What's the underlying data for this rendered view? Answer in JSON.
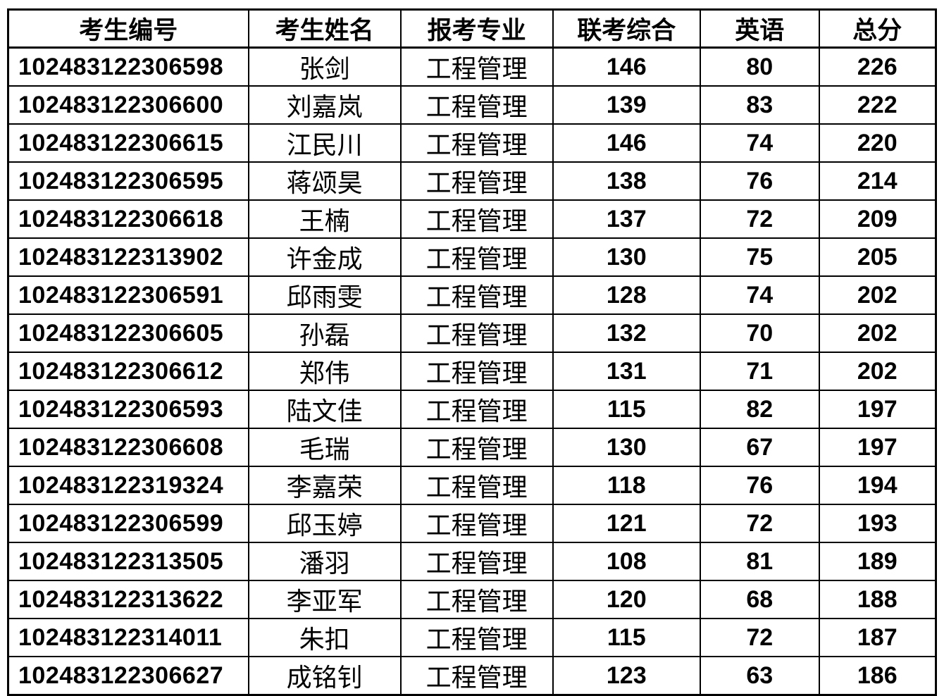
{
  "page": {
    "background_color": "#ffffff",
    "border_color": "#000000",
    "text_color": "#000000"
  },
  "table": {
    "columns": [
      {
        "key": "id",
        "label": "考生编号",
        "align": "left",
        "css": "cell-id"
      },
      {
        "key": "name",
        "label": "考生姓名",
        "align": "center",
        "css": "cell-name"
      },
      {
        "key": "major",
        "label": "报考专业",
        "align": "center",
        "css": "cell-major"
      },
      {
        "key": "comprehensive",
        "label": "联考综合",
        "align": "center",
        "css": "cell-num"
      },
      {
        "key": "english",
        "label": "英语",
        "align": "center",
        "css": "cell-num"
      },
      {
        "key": "total",
        "label": "总分",
        "align": "center",
        "css": "cell-num"
      }
    ],
    "rows": [
      {
        "id": "102483122306598",
        "name": "张剑",
        "major": "工程管理",
        "comprehensive": "146",
        "english": "80",
        "total": "226"
      },
      {
        "id": "102483122306600",
        "name": "刘嘉岚",
        "major": "工程管理",
        "comprehensive": "139",
        "english": "83",
        "total": "222"
      },
      {
        "id": "102483122306615",
        "name": "江民川",
        "major": "工程管理",
        "comprehensive": "146",
        "english": "74",
        "total": "220"
      },
      {
        "id": "102483122306595",
        "name": "蒋颂昊",
        "major": "工程管理",
        "comprehensive": "138",
        "english": "76",
        "total": "214"
      },
      {
        "id": "102483122306618",
        "name": "王楠",
        "major": "工程管理",
        "comprehensive": "137",
        "english": "72",
        "total": "209"
      },
      {
        "id": "102483122313902",
        "name": "许金成",
        "major": "工程管理",
        "comprehensive": "130",
        "english": "75",
        "total": "205"
      },
      {
        "id": "102483122306591",
        "name": "邱雨雯",
        "major": "工程管理",
        "comprehensive": "128",
        "english": "74",
        "total": "202"
      },
      {
        "id": "102483122306605",
        "name": "孙磊",
        "major": "工程管理",
        "comprehensive": "132",
        "english": "70",
        "total": "202"
      },
      {
        "id": "102483122306612",
        "name": "郑伟",
        "major": "工程管理",
        "comprehensive": "131",
        "english": "71",
        "total": "202"
      },
      {
        "id": "102483122306593",
        "name": "陆文佳",
        "major": "工程管理",
        "comprehensive": "115",
        "english": "82",
        "total": "197"
      },
      {
        "id": "102483122306608",
        "name": "毛瑞",
        "major": "工程管理",
        "comprehensive": "130",
        "english": "67",
        "total": "197"
      },
      {
        "id": "102483122319324",
        "name": "李嘉荣",
        "major": "工程管理",
        "comprehensive": "118",
        "english": "76",
        "total": "194"
      },
      {
        "id": "102483122306599",
        "name": "邱玉婷",
        "major": "工程管理",
        "comprehensive": "121",
        "english": "72",
        "total": "193"
      },
      {
        "id": "102483122313505",
        "name": "潘羽",
        "major": "工程管理",
        "comprehensive": "108",
        "english": "81",
        "total": "189"
      },
      {
        "id": "102483122313622",
        "name": "李亚军",
        "major": "工程管理",
        "comprehensive": "120",
        "english": "68",
        "total": "188"
      },
      {
        "id": "102483122314011",
        "name": "朱扣",
        "major": "工程管理",
        "comprehensive": "115",
        "english": "72",
        "total": "187"
      },
      {
        "id": "102483122306627",
        "name": "成铭钊",
        "major": "工程管理",
        "comprehensive": "123",
        "english": "63",
        "total": "186"
      }
    ]
  }
}
